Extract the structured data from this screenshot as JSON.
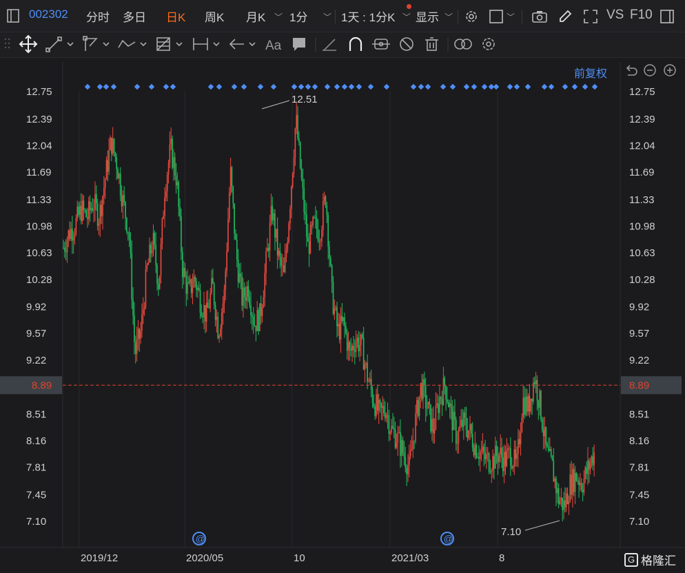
{
  "header": {
    "stock_code": "002302",
    "tabs": [
      "分时",
      "多日",
      "日K",
      "周K",
      "月K",
      "1分"
    ],
    "active_tab": "日K",
    "range_select": "1天 : 1分K",
    "display_label": "显示",
    "vs_label": "VS",
    "f10_label": "F10"
  },
  "toolbar": {
    "text_tool_label": "Aa"
  },
  "adjust_label": "前复权",
  "colors": {
    "up": "#f04a3e",
    "down": "#1fbf60",
    "accent": "#4f8ef7",
    "active_tab": "#ff6a1a",
    "current_price": "#e0442e"
  },
  "chart_data": {
    "type": "candlestick",
    "y_ticks": [
      "12.75",
      "12.39",
      "12.04",
      "11.69",
      "11.33",
      "10.98",
      "10.63",
      "10.28",
      "9.92",
      "9.57",
      "9.22",
      "8.89",
      "8.51",
      "8.16",
      "7.81",
      "7.45",
      "7.10"
    ],
    "ylim": [
      7.1,
      12.75
    ],
    "x_ticks": [
      "2019/12",
      "2020/05",
      "10",
      "2021/03",
      "8"
    ],
    "current_price": "8.89",
    "max_label": "12.51",
    "min_label": "7.10",
    "series": [
      {
        "points": [
          10.7,
          10.9,
          11.0,
          11.2,
          11.1,
          11.3,
          11.1,
          11.6,
          12.1,
          11.8,
          11.3,
          10.9,
          9.3,
          9.6,
          10.4,
          10.8,
          10.2,
          11.5,
          12.0,
          11.6,
          10.4,
          10.1,
          10.3,
          10.0,
          9.8,
          10.2,
          9.6,
          10.1,
          11.7,
          10.6,
          10.0,
          10.2,
          9.7,
          9.8,
          10.5,
          11.2,
          10.6,
          10.3,
          11.3,
          12.4,
          11.5,
          10.7,
          11.0,
          10.9,
          11.4,
          10.1,
          9.6,
          9.7,
          9.3,
          9.5,
          9.4,
          9.0,
          8.7,
          8.5,
          8.6,
          8.3,
          8.2,
          8.0,
          7.8,
          8.4,
          8.9,
          8.6,
          8.3,
          8.7,
          8.9,
          8.5,
          8.2,
          8.4,
          8.3,
          8.1,
          8.0,
          7.9,
          7.9,
          8.0,
          7.9,
          8.0,
          7.8,
          8.7,
          8.6,
          9.0,
          8.6,
          8.0,
          7.8,
          7.4,
          7.3,
          7.6,
          7.7,
          7.6,
          7.8,
          8.0
        ]
      }
    ],
    "event_markers": [
      "@",
      "@"
    ]
  }
}
